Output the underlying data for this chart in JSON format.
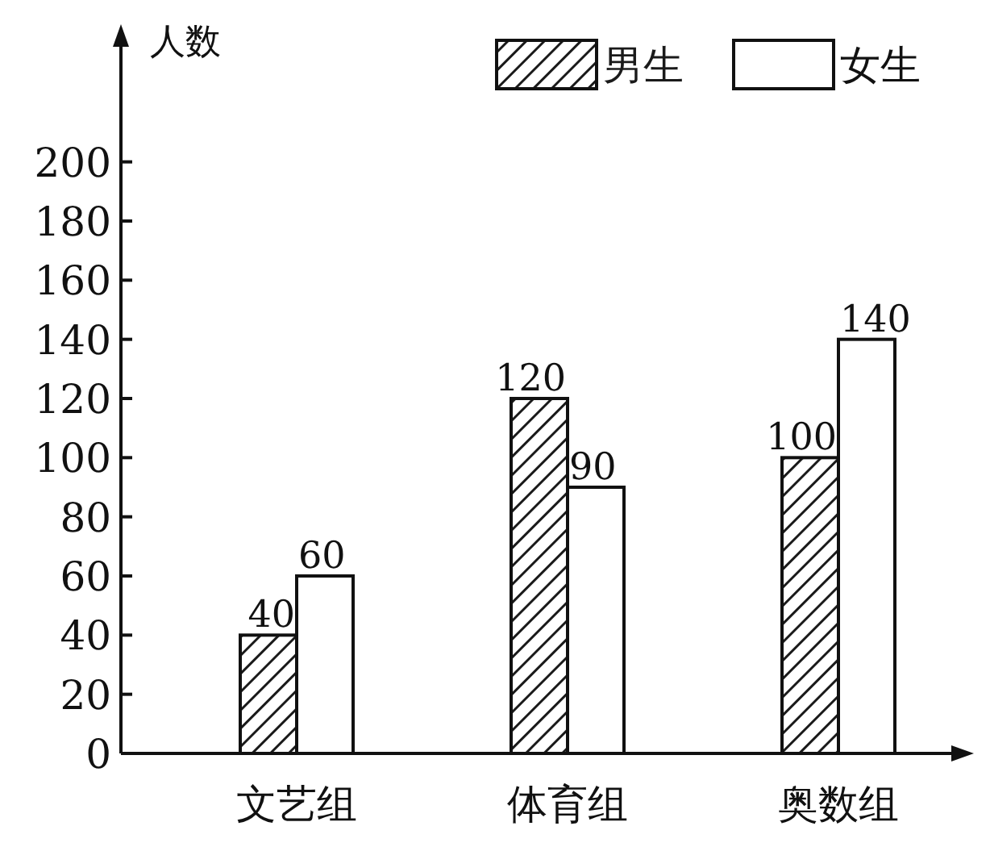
{
  "chart_data": {
    "type": "bar",
    "ylabel": "人数",
    "categories": [
      "文艺组",
      "体育组",
      "奥数组"
    ],
    "series": [
      {
        "name": "男生",
        "color": "#1a1a1a",
        "values": [
          40,
          120,
          100
        ]
      },
      {
        "name": "女生",
        "color": "#ffffff",
        "values": [
          60,
          90,
          140
        ]
      }
    ],
    "ylim": [
      0,
      240
    ],
    "yticks": [
      0,
      20,
      40,
      60,
      80,
      100,
      120,
      140,
      160,
      180,
      200
    ],
    "data_labels": true,
    "legend": "top right",
    "grid": false
  }
}
